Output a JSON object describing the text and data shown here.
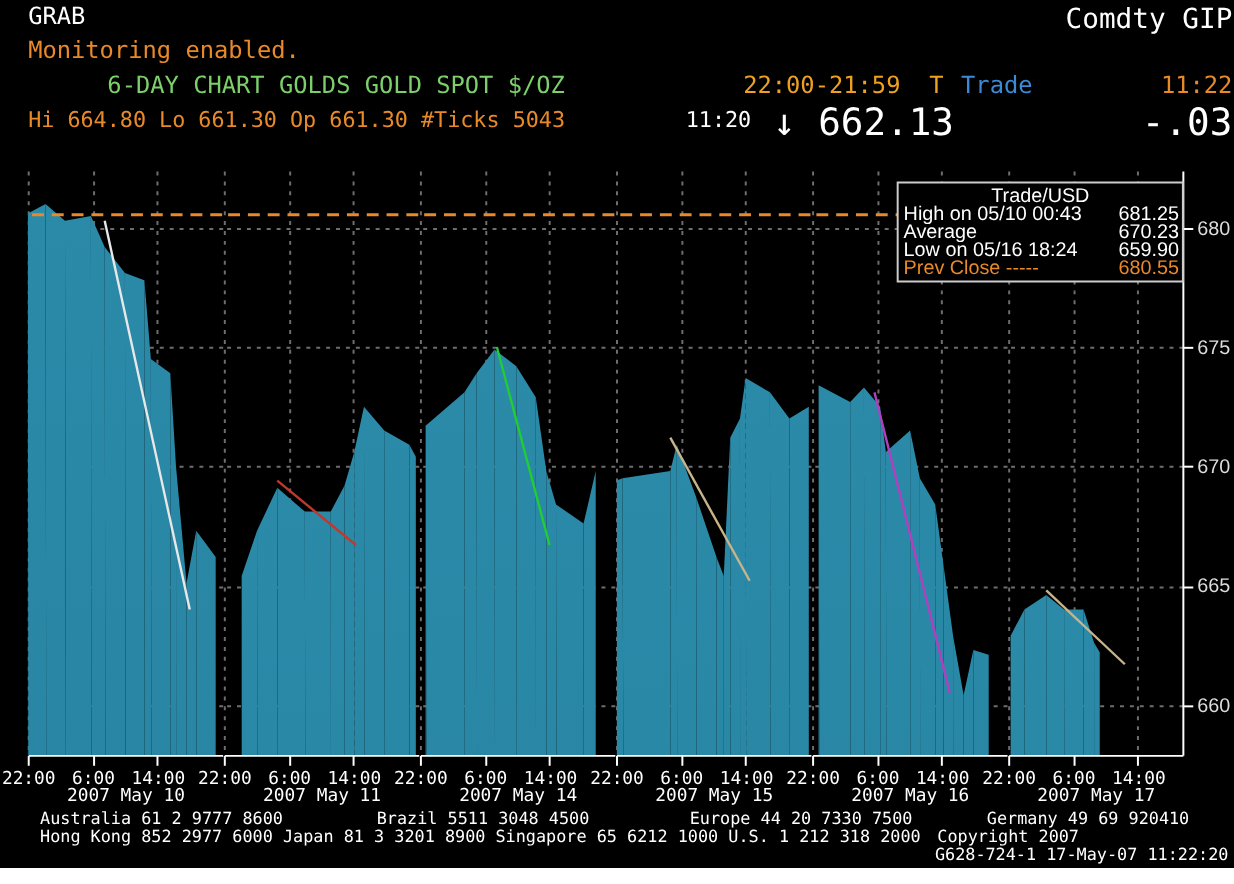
{
  "chart_data": [
    {
      "type": "area",
      "title": "6-DAY CHART GOLDS  GOLD SPOT $/OZ",
      "xlabel": "2007 May 10",
      "xlim": [
        "2007-05-09T22:00",
        "2007-05-10T22:00"
      ],
      "ylim": [
        657.9,
        682.4
      ],
      "xticks": [
        {
          "value": "2007-05-09T22:00",
          "label": "22:00"
        },
        {
          "value": "2007-05-10T06:00",
          "label": "6:00"
        },
        {
          "value": "2007-05-10T14:00",
          "label": "14:00"
        }
      ],
      "yticks": [
        660,
        665,
        670,
        675,
        680
      ],
      "grid": true,
      "tick_labels": "x",
      "series": [
        {
          "color": "#2a8aa8",
          "x": [
            "2007-05-09T22:00",
            "2007-05-10T00:12",
            "2007-05-10T02:36",
            "2007-05-10T05:48",
            "2007-05-10T07:30",
            "2007-05-10T10:00",
            "2007-05-10T12:24",
            "2007-05-10T13:12",
            "2007-05-10T15:36",
            "2007-05-10T16:18",
            "2007-05-10T17:36",
            "2007-05-10T18:48",
            "2007-05-10T21:12"
          ],
          "values": [
            680.6,
            681.0,
            680.3,
            680.5,
            679.2,
            678.1,
            677.8,
            674.5,
            673.9,
            670.0,
            665.1,
            667.3,
            666.2
          ]
        },
        {
          "type": "line",
          "color": "#e8e8e8",
          "x": [
            "2007-05-10T07:30",
            "2007-05-10T18:00"
          ],
          "values": [
            680.3,
            664.0
          ]
        }
      ],
      "ref_lines": [
        {
          "axis": "y",
          "value": 680.55,
          "color": "#e8892a",
          "line_style": "dashed"
        }
      ],
      "annotations": [
        "GRAB",
        "Monitoring enabled.",
        "Comdty GIP",
        "22:00-21:59",
        "T",
        "Trade",
        "11:22",
        "Hi 664.80 Lo 661.30 Op 661.30 #Ticks 5043",
        "11:20",
        "↓ 662.13",
        "-.03",
        "Australia 61 2 9777 8600",
        "Brazil 5511 3048 4500",
        "Europe 44 20 7330 7500",
        "Germany 49 69 920410",
        "Hong Kong 852 2977 6000 Japan 81 3 3201 8900 Singapore 65 6212 1000 U.S. 1 212 318 2000",
        "Copyright 2007",
        "G628-724-1 17-May-07 11:22:20"
      ]
    },
    {
      "type": "area",
      "xlabel": "2007 May 11",
      "xlim": [
        "2007-05-10T22:00",
        "2007-05-11T22:00"
      ],
      "ylim": [
        657.9,
        682.4
      ],
      "xticks": [
        {
          "value": "2007-05-10T22:00",
          "label": "22:00"
        },
        {
          "value": "2007-05-11T06:00",
          "label": "6:00"
        },
        {
          "value": "2007-05-11T14:00",
          "label": "14:00"
        }
      ],
      "yticks": [
        660,
        665,
        670,
        675,
        680
      ],
      "grid": true,
      "tick_labels": "x",
      "series": [
        {
          "color": "#2a8aa8",
          "x": [
            "2007-05-11T00:12",
            "2007-05-11T02:06",
            "2007-05-11T04:36",
            "2007-05-11T08:00",
            "2007-05-11T11:12",
            "2007-05-11T12:54",
            "2007-05-11T14:06",
            "2007-05-11T15:18",
            "2007-05-11T17:48",
            "2007-05-11T20:54",
            "2007-05-11T21:42"
          ],
          "values": [
            665.4,
            667.3,
            669.1,
            668.1,
            668.1,
            669.2,
            670.6,
            672.5,
            671.5,
            670.9,
            670.4
          ]
        },
        {
          "type": "line",
          "color": "#c0392b",
          "x": [
            "2007-05-11T04:36",
            "2007-05-11T14:18"
          ],
          "values": [
            669.4,
            666.7
          ]
        }
      ],
      "ref_lines": [
        {
          "axis": "y",
          "value": 680.55,
          "color": "#e8892a",
          "line_style": "dashed"
        }
      ]
    },
    {
      "type": "area",
      "xlabel": "2007 May 14",
      "xlim": [
        "2007-05-13T22:00",
        "2007-05-14T22:00"
      ],
      "ylim": [
        657.9,
        682.4
      ],
      "xticks": [
        {
          "value": "2007-05-13T22:00",
          "label": "22:00"
        },
        {
          "value": "2007-05-14T06:00",
          "label": "6:00"
        },
        {
          "value": "2007-05-14T14:00",
          "label": "14:00"
        }
      ],
      "yticks": [
        660,
        665,
        670,
        675,
        680
      ],
      "grid": true,
      "tick_labels": "x",
      "series": [
        {
          "color": "#2a8aa8",
          "x": [
            "2007-05-13T22:42",
            "2007-05-14T03:30",
            "2007-05-14T05:00",
            "2007-05-14T07:12",
            "2007-05-14T09:54",
            "2007-05-14T12:18",
            "2007-05-14T13:36",
            "2007-05-14T14:48",
            "2007-05-14T18:12",
            "2007-05-14T19:42"
          ],
          "values": [
            671.7,
            673.1,
            673.9,
            674.9,
            674.2,
            672.9,
            669.8,
            668.4,
            667.6,
            669.8
          ]
        },
        {
          "type": "line",
          "color": "#22cc33",
          "x": [
            "2007-05-14T07:30",
            "2007-05-14T14:00"
          ],
          "values": [
            675.0,
            666.7
          ]
        }
      ],
      "ref_lines": [
        {
          "axis": "y",
          "value": 680.55,
          "color": "#e8892a",
          "line_style": "dashed"
        }
      ]
    },
    {
      "type": "area",
      "xlabel": "2007 May 15",
      "xlim": [
        "2007-05-14T22:00",
        "2007-05-15T22:00"
      ],
      "ylim": [
        657.9,
        682.4
      ],
      "xticks": [
        {
          "value": "2007-05-14T22:00",
          "label": "22:00"
        },
        {
          "value": "2007-05-15T06:00",
          "label": "6:00"
        },
        {
          "value": "2007-05-15T14:00",
          "label": "14:00"
        }
      ],
      "yticks": [
        660,
        665,
        670,
        675,
        680
      ],
      "grid": true,
      "tick_labels": "x",
      "series": [
        {
          "color": "#2a8aa8",
          "x": [
            "2007-05-14T22:06",
            "2007-05-14T22:48",
            "2007-05-15T04:42",
            "2007-05-15T05:30",
            "2007-05-15T07:54",
            "2007-05-15T10:24",
            "2007-05-15T11:18",
            "2007-05-15T12:06",
            "2007-05-15T13:18",
            "2007-05-15T14:00",
            "2007-05-15T17:00",
            "2007-05-15T19:24",
            "2007-05-15T21:48"
          ],
          "values": [
            669.4,
            669.5,
            669.8,
            670.9,
            668.7,
            666.2,
            665.4,
            671.2,
            672.0,
            673.7,
            673.1,
            672.0,
            672.5
          ]
        },
        {
          "type": "line",
          "color": "#c8b48a",
          "x": [
            "2007-05-15T04:42",
            "2007-05-15T14:30"
          ],
          "values": [
            671.2,
            665.2
          ]
        }
      ],
      "ref_lines": [
        {
          "axis": "y",
          "value": 680.55,
          "color": "#e8892a",
          "line_style": "dashed"
        }
      ]
    },
    {
      "type": "area",
      "xlabel": "2007 May 16",
      "xlim": [
        "2007-05-15T22:00",
        "2007-05-16T22:00"
      ],
      "ylim": [
        657.9,
        682.4
      ],
      "xticks": [
        {
          "value": "2007-05-15T22:00",
          "label": "22:00"
        },
        {
          "value": "2007-05-16T06:00",
          "label": "6:00"
        },
        {
          "value": "2007-05-16T14:00",
          "label": "14:00"
        }
      ],
      "yticks": [
        660,
        665,
        670,
        675,
        680
      ],
      "grid": true,
      "tick_labels": "x",
      "series": [
        {
          "color": "#2a8aa8",
          "x": [
            "2007-05-15T22:48",
            "2007-05-16T02:42",
            "2007-05-16T04:24",
            "2007-05-16T06:24",
            "2007-05-16T07:06",
            "2007-05-16T10:06",
            "2007-05-16T11:18",
            "2007-05-16T13:12",
            "2007-05-16T14:12",
            "2007-05-16T15:24",
            "2007-05-16T16:42",
            "2007-05-16T17:54",
            "2007-05-16T19:48"
          ],
          "values": [
            673.4,
            672.7,
            673.3,
            672.5,
            670.6,
            671.5,
            669.5,
            668.4,
            665.9,
            662.9,
            660.4,
            662.3,
            662.1
          ]
        },
        {
          "type": "line",
          "color": "#b040c0",
          "x": [
            "2007-05-16T05:42",
            "2007-05-16T15:00"
          ],
          "values": [
            673.1,
            660.5
          ]
        }
      ],
      "ref_lines": [
        {
          "axis": "y",
          "value": 680.55,
          "label": "Prev Close -----",
          "color": "#e8892a",
          "line_style": "dashed"
        }
      ]
    },
    {
      "type": "area",
      "xlabel": "2007 May 17",
      "xlim": [
        "2007-05-16T22:00",
        "2007-05-17T19:30"
      ],
      "ylim": [
        657.9,
        682.4
      ],
      "xticks": [
        {
          "value": "2007-05-16T22:00",
          "label": "22:00"
        },
        {
          "value": "2007-05-17T06:00",
          "label": "6:00"
        },
        {
          "value": "2007-05-17T14:00",
          "label": "14:00"
        }
      ],
      "yticks": [
        660,
        665,
        670,
        675,
        680
      ],
      "grid": true,
      "series": [
        {
          "color": "#2a8aa8",
          "x": [
            "2007-05-16T22:18",
            "2007-05-17T00:00",
            "2007-05-17T02:42",
            "2007-05-17T04:54",
            "2007-05-17T07:18",
            "2007-05-17T08:36",
            "2007-05-17T09:18"
          ],
          "values": [
            662.9,
            664.0,
            664.6,
            664.0,
            664.0,
            662.6,
            662.2
          ]
        },
        {
          "type": "line",
          "color": "#c8b48a",
          "x": [
            "2007-05-17T02:42",
            "2007-05-17T12:24"
          ],
          "values": [
            664.8,
            661.7
          ]
        }
      ],
      "annotations": [
        "Trade/USD",
        "High on 05/10 00:43",
        "681.25",
        "Average",
        "670.23",
        "Low on 05/16 18:24",
        "659.90",
        "680.55"
      ]
    }
  ]
}
